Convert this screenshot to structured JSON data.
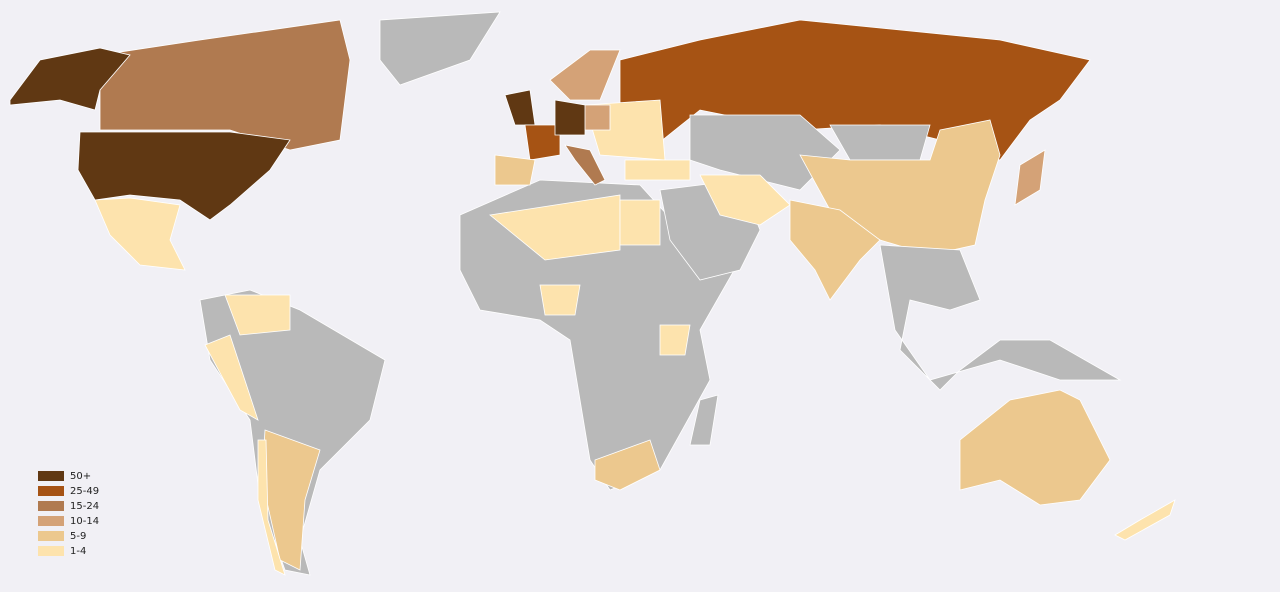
{
  "legend": {
    "items": [
      {
        "label": "50+",
        "color": "#603813"
      },
      {
        "label": "25-49",
        "color": "#a65314"
      },
      {
        "label": "15-24",
        "color": "#b07a50"
      },
      {
        "label": "10-14",
        "color": "#d4a277"
      },
      {
        "label": "5-9",
        "color": "#ecc88e"
      },
      {
        "label": "1-4",
        "color": "#fde3ad"
      }
    ]
  },
  "no_data_color": "#b9b9b9"
}
